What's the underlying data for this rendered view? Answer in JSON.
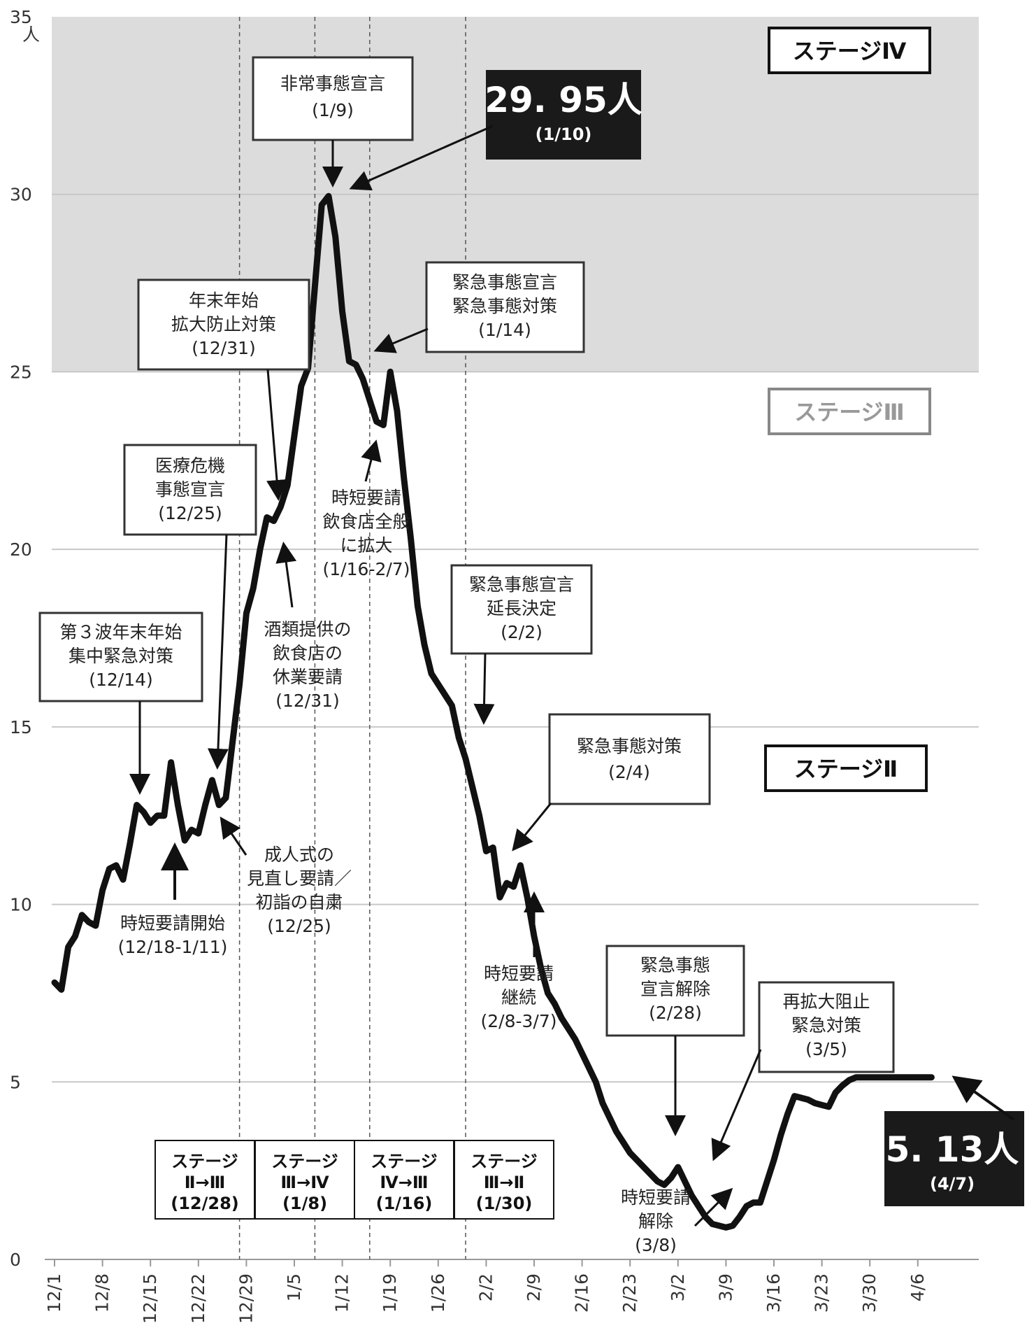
{
  "chart_data": {
    "type": "line",
    "unit": "人",
    "ylim": [
      0,
      35
    ],
    "yticks": [
      "0",
      "5",
      "10",
      "15",
      "20",
      "25",
      "30",
      "35"
    ],
    "xticks": [
      "12/1",
      "12/8",
      "12/15",
      "12/22",
      "12/29",
      "1/5",
      "1/12",
      "1/19",
      "1/26",
      "2/2",
      "2/9",
      "2/16",
      "2/23",
      "3/2",
      "3/9",
      "3/16",
      "3/23",
      "3/30",
      "4/6"
    ],
    "xlim": [
      0,
      128
    ],
    "series": [
      {
        "x": [
          0,
          1,
          2,
          3,
          4,
          5,
          6,
          7,
          8,
          9,
          10,
          11,
          12,
          13,
          14,
          15,
          16,
          17,
          18,
          19,
          20,
          21,
          22,
          23,
          24,
          25,
          26,
          27,
          28,
          29,
          30,
          31,
          32,
          33,
          34,
          35,
          36,
          37,
          38,
          39,
          40,
          41,
          42,
          43,
          44,
          45,
          46,
          47,
          48,
          49,
          50,
          51,
          52,
          53,
          54,
          55,
          56,
          57,
          58,
          59,
          60,
          61,
          62,
          63,
          64,
          65,
          66,
          67,
          68,
          69,
          70,
          71,
          72,
          73,
          74,
          75,
          76,
          77,
          78,
          79,
          80,
          81,
          82,
          83,
          84,
          85,
          86,
          87,
          88,
          89,
          90,
          91,
          92,
          93,
          94,
          95,
          96,
          97,
          98,
          99,
          100,
          101,
          102,
          103,
          104,
          105,
          106,
          107,
          108,
          109,
          110,
          111,
          112,
          113,
          114,
          115,
          116,
          117,
          118,
          119,
          120,
          121,
          122,
          123,
          124,
          125,
          126,
          127,
          128
        ],
        "values": [
          7.8,
          7.6,
          8.8,
          9.1,
          9.7,
          9.5,
          9.4,
          10.4,
          11.0,
          11.1,
          10.7,
          11.7,
          12.8,
          12.6,
          12.3,
          12.5,
          12.5,
          14.0,
          12.8,
          11.8,
          12.1,
          12.0,
          12.8,
          13.5,
          12.8,
          13.0,
          14.6,
          16.2,
          18.2,
          18.9,
          20.0,
          20.9,
          20.8,
          21.2,
          21.8,
          23.2,
          24.6,
          25.1,
          27.4,
          29.7,
          29.95,
          28.8,
          26.7,
          25.3,
          25.2,
          24.8,
          24.2,
          23.6,
          23.5,
          25.0,
          23.9,
          22.0,
          20.3,
          18.4,
          17.3,
          16.5,
          16.2,
          15.9,
          15.6,
          14.7,
          14.1,
          13.3,
          12.5,
          11.5,
          11.6,
          10.2,
          10.6,
          10.5,
          11.1,
          10.2,
          9.1,
          8.2,
          7.5,
          7.2,
          6.8,
          6.5,
          6.2,
          5.8,
          5.4,
          5.0,
          4.4,
          4.0,
          3.6,
          3.3,
          3.0,
          2.8,
          2.6,
          2.4,
          2.2,
          2.1,
          2.3,
          2.6,
          2.2,
          1.8,
          1.5,
          1.2,
          1.0,
          0.95,
          0.9,
          0.95,
          1.2,
          1.5,
          1.6,
          1.6,
          2.2,
          2.8,
          3.5,
          4.1,
          4.6,
          4.55,
          4.5,
          4.4,
          4.35,
          4.3,
          4.7,
          4.9,
          5.05,
          5.13,
          5.13,
          5.13,
          5.13,
          5.13,
          5.13,
          5.13,
          5.13,
          5.13,
          5.13,
          5.13,
          5.13
        ]
      }
    ],
    "bands": [
      {
        "from": 25,
        "to": 35,
        "color": "#dcdcdc",
        "label": "ステージⅣ"
      },
      {
        "from": 15,
        "to": 25,
        "color": "#ffffff",
        "label": "ステージⅢ"
      },
      {
        "from": 0,
        "to": 15,
        "color": "#ffffff",
        "label": "ステージⅡ"
      }
    ],
    "gridlines": [
      5,
      10,
      15,
      20,
      25,
      30
    ],
    "grid": true,
    "legend": "none"
  },
  "ylabel": "人",
  "annotations": {
    "peak": {
      "value": "29. 95人",
      "date": "(1/10)"
    },
    "latest": {
      "value": "5. 13人",
      "date": "(4/7)"
    },
    "emergency_declaration": {
      "l1": "非常事態宣言",
      "l2": "(1/9)"
    },
    "national_emergency": {
      "l1": "緊急事態宣言",
      "l2": "緊急事態対策",
      "l3": "(1/14)"
    },
    "year_end": {
      "l1": "年末年始",
      "l2": "拡大防止対策",
      "l3": "(12/31)"
    },
    "medical_crisis": {
      "l1": "医療危機",
      "l2": "事態宣言",
      "l3": "(12/25)"
    },
    "third_wave": {
      "l1": "第３波年末年始",
      "l2": "集中緊急対策",
      "l3": "(12/14)"
    },
    "extension": {
      "l1": "緊急事態宣言",
      "l2": "延長決定",
      "l3": "(2/2)"
    },
    "emergency_measures": {
      "l1": "緊急事態対策",
      "l2": "(2/4)"
    },
    "lifting": {
      "l1": "緊急事態",
      "l2": "宣言解除",
      "l3": "(2/28)"
    },
    "rebound": {
      "l1": "再拡大阻止",
      "l2": "緊急対策",
      "l3": "(3/5)"
    },
    "liquor": {
      "l1": "酒類提供の",
      "l2": "飲食店の",
      "l3": "休業要請",
      "l4": "(12/31)"
    },
    "shorthours_expand": {
      "l1": "時短要請",
      "l2": "飲食店全般",
      "l3": "に拡大",
      "l4": "(1/16-2/7)"
    },
    "ceremony": {
      "l1": "成人式の",
      "l2": "見直し要請／",
      "l3": "初詣の自粛",
      "l4": "(12/25)"
    },
    "shorthours_start": {
      "l1": "時短要請開始",
      "l2": "(12/18-1/11)"
    },
    "shorthours_continue": {
      "l1": "時短要請",
      "l2": "継続",
      "l3": "(2/8-3/7)"
    },
    "shorthours_lift": {
      "l1": "時短要請",
      "l2": "解除",
      "l3": "(3/8)"
    }
  },
  "stage_labels": {
    "iv": "ステージⅣ",
    "iii": "ステージⅢ",
    "ii": "ステージⅡ"
  },
  "transitions": [
    {
      "l1": "ステージ",
      "l2": "Ⅱ→Ⅲ",
      "l3": "(12/28)"
    },
    {
      "l1": "ステージ",
      "l2": "Ⅲ→Ⅳ",
      "l3": "(1/8)"
    },
    {
      "l1": "ステージ",
      "l2": "Ⅳ→Ⅲ",
      "l3": "(1/16)"
    },
    {
      "l1": "ステージ",
      "l2": "Ⅲ→Ⅱ",
      "l3": "(1/30)"
    }
  ],
  "vlines": [
    27,
    38,
    46,
    60
  ],
  "colors": {
    "line": "#111111",
    "band": "#dcdcdc",
    "grid": "#c8c8c8",
    "dark_box": "#1a1a1a"
  }
}
